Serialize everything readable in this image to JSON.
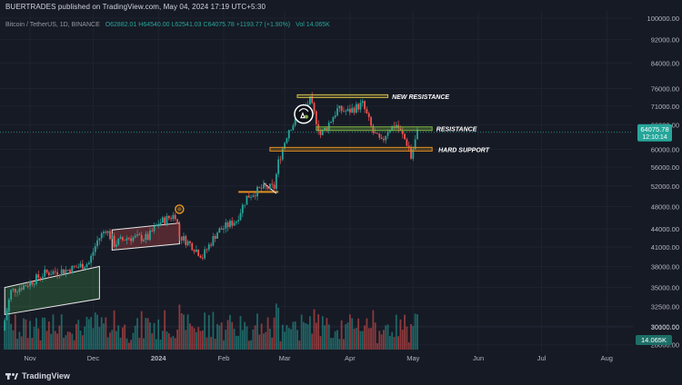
{
  "header": {
    "text": "BUERTRADES published on TradingView.com, May 04, 2024 17:19 UTC+5:30"
  },
  "legend": {
    "symbol": "Bitcoin / TetherUS, 1D, BINANCE",
    "ohlc": "O62882.01 H64540.00 L62541.03 C64075.78 +1193.77 (+1.90%)",
    "volume": "Vol 14.065K"
  },
  "footer": {
    "brand": "TradingView"
  },
  "colors": {
    "up": "#26a69a",
    "down": "#ef5350",
    "background": "#161a25",
    "level_orange": "#e0901e",
    "level_yellow": "#d8c34a",
    "level_green": "#7cb342"
  },
  "chart_data": {
    "type": "candlestick",
    "title": "Bitcoin / TetherUS, 1D, BINANCE",
    "price_axis": {
      "scale": "log",
      "ticks": [
        100000,
        92000,
        84000,
        76000,
        71000,
        66000,
        60000,
        56000,
        52000,
        48000,
        44000,
        41000,
        38000,
        35000,
        32500,
        30100,
        30000,
        28000
      ],
      "tick_labels": [
        "100000.00",
        "92000.00",
        "84000.00",
        "76000.00",
        "71000.00",
        "66000.00",
        "60000.00",
        "56000.00",
        "52000.00",
        "48000.00",
        "44000.00",
        "41000.00",
        "38000.00",
        "35000.00",
        "32500.00",
        "30100.00",
        "30000.00",
        "28000.00"
      ],
      "last_price": "64075.78",
      "countdown": "12:10:14",
      "volume_label": "14.065K"
    },
    "time_axis": {
      "labels": [
        "Nov",
        "Dec",
        "2024",
        "Feb",
        "Mar",
        "Apr",
        "May",
        "Jun",
        "Jul",
        "Aug"
      ]
    },
    "annotations": [
      {
        "label": "NEW RESISTANCE",
        "price": 73800
      },
      {
        "label": "RESISTANCE",
        "price": 65000
      },
      {
        "label": "HARD SUPPORT",
        "price": 60000
      }
    ],
    "price_path": [
      [
        "2023-10-20",
        29600
      ],
      [
        "2023-10-24",
        34500
      ],
      [
        "2023-11-01",
        35500
      ],
      [
        "2023-11-09",
        37000
      ],
      [
        "2023-11-20",
        37500
      ],
      [
        "2023-11-30",
        38500
      ],
      [
        "2023-12-04",
        42000
      ],
      [
        "2023-12-08",
        44000
      ],
      [
        "2023-12-12",
        41500
      ],
      [
        "2023-12-18",
        42500
      ],
      [
        "2023-12-28",
        42500
      ],
      [
        "2024-01-02",
        45000
      ],
      [
        "2024-01-10",
        46500
      ],
      [
        "2024-01-12",
        42800
      ],
      [
        "2024-01-18",
        41200
      ],
      [
        "2024-01-23",
        39500
      ],
      [
        "2024-01-30",
        43500
      ],
      [
        "2024-02-08",
        45500
      ],
      [
        "2024-02-13",
        49800
      ],
      [
        "2024-02-20",
        51500
      ],
      [
        "2024-02-26",
        51700
      ],
      [
        "2024-02-28",
        57000
      ],
      [
        "2024-03-04",
        65000
      ],
      [
        "2024-03-08",
        67500
      ],
      [
        "2024-03-14",
        72500
      ],
      [
        "2024-03-19",
        63500
      ],
      [
        "2024-03-22",
        65500
      ],
      [
        "2024-03-27",
        70000
      ],
      [
        "2024-04-01",
        69500
      ],
      [
        "2024-04-08",
        71500
      ],
      [
        "2024-04-13",
        64000
      ],
      [
        "2024-04-17",
        61500
      ],
      [
        "2024-04-20",
        64800
      ],
      [
        "2024-04-24",
        66000
      ],
      [
        "2024-04-30",
        60500
      ],
      [
        "2024-05-01",
        58000
      ],
      [
        "2024-05-04",
        64075
      ]
    ]
  }
}
